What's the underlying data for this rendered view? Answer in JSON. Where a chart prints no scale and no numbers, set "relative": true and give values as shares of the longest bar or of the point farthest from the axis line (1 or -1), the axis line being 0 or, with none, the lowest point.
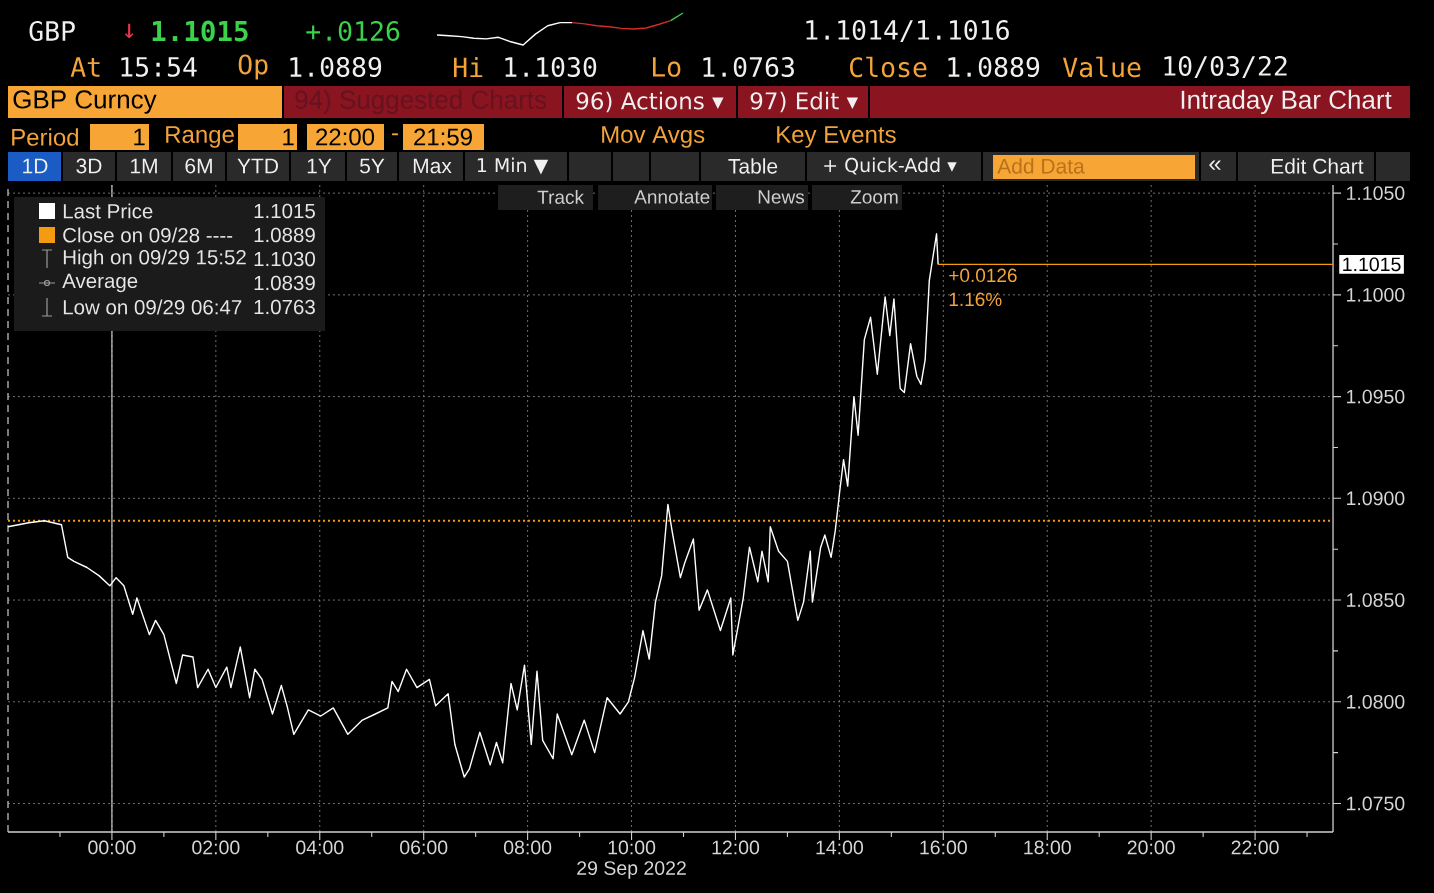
{
  "chart_data": [
    {
      "type": "line",
      "relative": true,
      "categories": [
        null,
        null,
        null,
        null,
        null,
        null,
        null,
        null,
        null,
        null,
        null,
        null,
        null,
        null,
        null,
        null,
        null,
        null,
        null,
        null,
        null
      ],
      "series": [
        {
          "color": "#ffffff",
          "values": [
            0.31,
            0.29,
            0.26,
            0.21,
            0.19,
            0.24,
            0.1,
            0.0,
            0.34,
            0.6,
            0.7,
            0.7,
            null,
            null,
            null,
            null,
            null,
            null,
            null,
            null,
            null
          ]
        },
        {
          "color": "#d42a2a",
          "values": [
            null,
            null,
            null,
            null,
            null,
            null,
            null,
            null,
            null,
            null,
            null,
            0.7,
            0.66,
            0.6,
            0.57,
            0.52,
            0.5,
            0.53,
            0.64,
            0.76,
            null
          ]
        },
        {
          "color": "#3ad14a",
          "values": [
            null,
            null,
            null,
            null,
            null,
            null,
            null,
            null,
            null,
            null,
            null,
            null,
            null,
            null,
            null,
            null,
            null,
            null,
            null,
            0.76,
            1.0
          ]
        }
      ]
    },
    {
      "type": "line",
      "title": "Intraday Bar Chart",
      "xlabel": "29 Sep 2022",
      "x": [
        -2.0,
        -1.6,
        -1.3,
        -0.97,
        -0.85,
        -0.73,
        -0.48,
        -0.25,
        -0.04,
        0.08,
        0.23,
        0.4,
        0.48,
        0.72,
        0.84,
        1.0,
        1.24,
        1.36,
        1.56,
        1.65,
        1.85,
        2.0,
        2.21,
        2.29,
        2.47,
        2.65,
        2.75,
        2.89,
        3.09,
        3.26,
        3.37,
        3.5,
        3.78,
        4.02,
        4.26,
        4.54,
        4.82,
        5.07,
        5.31,
        5.39,
        5.51,
        5.67,
        5.87,
        6.11,
        6.23,
        6.47,
        6.6,
        6.78,
        6.88,
        7.08,
        7.28,
        7.4,
        7.52,
        7.68,
        7.8,
        7.94,
        8.07,
        8.18,
        8.29,
        8.49,
        8.57,
        8.85,
        9.09,
        9.29,
        9.53,
        9.78,
        9.94,
        10.06,
        10.22,
        10.34,
        10.46,
        10.58,
        10.7,
        10.78,
        10.94,
        11.02,
        11.19,
        11.3,
        11.46,
        11.71,
        11.91,
        11.95,
        12.15,
        12.27,
        12.43,
        12.51,
        12.63,
        12.67,
        12.83,
        13.0,
        13.2,
        13.31,
        13.44,
        13.48,
        13.64,
        13.72,
        13.84,
        13.92,
        14.0,
        14.08,
        14.16,
        14.28,
        14.36,
        14.48,
        14.6,
        14.73,
        14.88,
        14.97,
        15.05,
        15.17,
        15.25,
        15.37,
        15.49,
        15.57,
        15.65,
        15.73,
        15.87,
        15.9
      ],
      "series": [
        {
          "name": "Last Price",
          "color": "#ffffff",
          "values": [
            1.0886,
            1.0888,
            1.0889,
            1.0887,
            1.0871,
            1.0869,
            1.0866,
            1.0862,
            1.0857,
            1.0861,
            1.0857,
            1.0843,
            1.0851,
            1.0833,
            1.084,
            1.0833,
            1.0809,
            1.0823,
            1.0822,
            1.0807,
            1.0816,
            1.0807,
            1.0817,
            1.0807,
            1.0827,
            1.0802,
            1.0816,
            1.0811,
            1.0794,
            1.0808,
            1.0798,
            1.0784,
            1.0796,
            1.0793,
            1.0797,
            1.0784,
            1.0791,
            1.0794,
            1.0797,
            1.081,
            1.0805,
            1.0816,
            1.0807,
            1.0811,
            1.0798,
            1.0804,
            1.0779,
            1.0763,
            1.0767,
            1.0785,
            1.0769,
            1.078,
            1.077,
            1.0809,
            1.0796,
            1.0818,
            1.0779,
            1.0815,
            1.0781,
            1.0772,
            1.0794,
            1.0774,
            1.0791,
            1.0775,
            1.0802,
            1.0794,
            1.08,
            1.0812,
            1.0835,
            1.0821,
            1.0849,
            1.0862,
            1.0897,
            1.0884,
            1.0861,
            1.0868,
            1.088,
            1.0845,
            1.0855,
            1.0835,
            1.0851,
            1.0823,
            1.0851,
            1.0876,
            1.0859,
            1.0874,
            1.0859,
            1.0886,
            1.0874,
            1.0869,
            1.084,
            1.0849,
            1.0874,
            1.0849,
            1.0876,
            1.0882,
            1.0871,
            1.0884,
            1.0902,
            1.0919,
            1.0906,
            1.095,
            1.0931,
            1.0978,
            1.0989,
            1.0961,
            1.0999,
            1.098,
            1.0998,
            1.0954,
            1.0952,
            1.0976,
            1.096,
            1.0956,
            1.0968,
            1.1007,
            1.103,
            1.1015
          ]
        }
      ],
      "xlim": [
        -2,
        23.5
      ],
      "ylim": [
        1.0736,
        1.1054
      ],
      "xticks": [
        {
          "value": 0,
          "label": "00:00"
        },
        {
          "value": 2,
          "label": "02:00"
        },
        {
          "value": 4,
          "label": "04:00"
        },
        {
          "value": 6,
          "label": "06:00"
        },
        {
          "value": 8,
          "label": "08:00"
        },
        {
          "value": 10,
          "label": "10:00"
        },
        {
          "value": 12,
          "label": "12:00"
        },
        {
          "value": 14,
          "label": "14:00"
        },
        {
          "value": 16,
          "label": "16:00"
        },
        {
          "value": 18,
          "label": "18:00"
        },
        {
          "value": 20,
          "label": "20:00"
        },
        {
          "value": 22,
          "label": "22:00"
        }
      ],
      "yticks": [
        {
          "value": 1.075,
          "label": "1.0750"
        },
        {
          "value": 1.08,
          "label": "1.0800"
        },
        {
          "value": 1.085,
          "label": "1.0850"
        },
        {
          "value": 1.09,
          "label": "1.0900"
        },
        {
          "value": 1.095,
          "label": "1.0950"
        },
        {
          "value": 1.1,
          "label": "1.1000"
        },
        {
          "value": 1.105,
          "label": "1.1050"
        }
      ],
      "grid": true,
      "legend": "top left",
      "ref_lines": [
        {
          "axis": "x",
          "value": -2,
          "color": "#bdbdbd",
          "line_style": "dashed"
        },
        {
          "axis": "x",
          "value": 0,
          "color": "#bdbdbd",
          "line_style": "solid"
        },
        {
          "axis": "y",
          "value": 1.0889,
          "label": "Close on 09/28 ----",
          "color": "#f39c12",
          "line_style": "dotted"
        },
        {
          "axis": "y",
          "value": 1.1015,
          "color": "#f39c12",
          "line_style": "solid"
        }
      ],
      "annotations": [
        "GBP",
        "↓",
        "1.1015",
        "+.0126",
        "1.1014/1.1016",
        "At",
        "15:54",
        "Op",
        "1.0889",
        "Hi",
        "1.1030",
        "Lo",
        "1.0763",
        "Close",
        "1.0889",
        "Value",
        "10/03/22",
        "GBP Curncy",
        "94) Suggested Charts",
        "96) Actions ▾",
        "97) Edit ▾",
        "Period",
        "1",
        "Range",
        "1",
        "22:00",
        "-",
        "21:59",
        "Mov Avgs",
        "Key Events",
        "1D",
        "3D",
        "1M",
        "6M",
        "YTD",
        "1Y",
        "5Y",
        "Max",
        "1 Min ▼",
        "Table",
        "+ Quick-Add ▾",
        "Add Data",
        "«",
        "Edit Chart",
        "Track",
        "Annotate",
        "News",
        "Zoom",
        "1.1015",
        "1.0889",
        "High on 09/29 15:52",
        "1.1030",
        "Average",
        "1.0839",
        "Low on 09/29 06:47",
        "1.0763",
        "+0.0126",
        "1.16%",
        "1.1015"
      ]
    }
  ]
}
